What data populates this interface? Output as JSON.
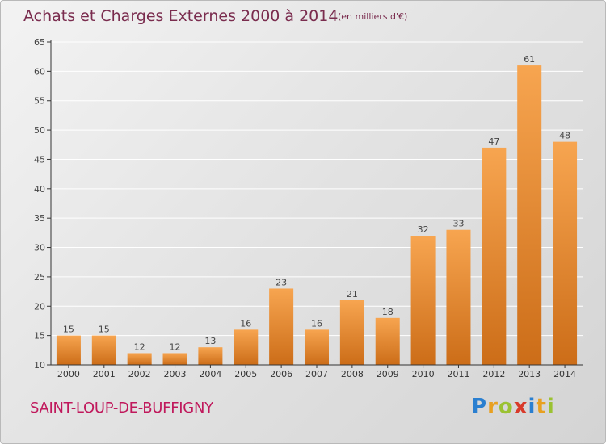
{
  "title": "Achats et Charges Externes 2000 à 2014",
  "subtitle": "(en milliers d'€)",
  "commune": "SAINT-LOUP-DE-BUFFIGNY",
  "logo": {
    "letters": [
      {
        "ch": "P",
        "color": "#2a7fd0"
      },
      {
        "ch": "r",
        "color": "#e8a020"
      },
      {
        "ch": "o",
        "color": "#9bc232"
      },
      {
        "ch": "x",
        "color": "#d83a2a"
      },
      {
        "ch": "i",
        "color": "#2a7fd0"
      },
      {
        "ch": "t",
        "color": "#e8a020"
      },
      {
        "ch": "i",
        "color": "#9bc232"
      }
    ]
  },
  "colors": {
    "bar_top": "#f7a550",
    "bar_bottom": "#cc6d18",
    "axis": "#333333",
    "grid": "#ffffff"
  },
  "chart_data": {
    "type": "bar",
    "title": "Achats et Charges Externes 2000 à 2014",
    "subtitle": "(en milliers d'€)",
    "categories": [
      "2000",
      "2001",
      "2002",
      "2003",
      "2004",
      "2005",
      "2006",
      "2007",
      "2008",
      "2009",
      "2010",
      "2011",
      "2012",
      "2013",
      "2014"
    ],
    "values": [
      15,
      15,
      12,
      12,
      13,
      16,
      23,
      16,
      21,
      18,
      32,
      33,
      47,
      61,
      48
    ],
    "ylim": [
      10,
      65
    ],
    "yticks": [
      10,
      15,
      20,
      25,
      30,
      35,
      40,
      45,
      50,
      55,
      60,
      65
    ],
    "grid": true,
    "xlabel": "",
    "ylabel": ""
  }
}
